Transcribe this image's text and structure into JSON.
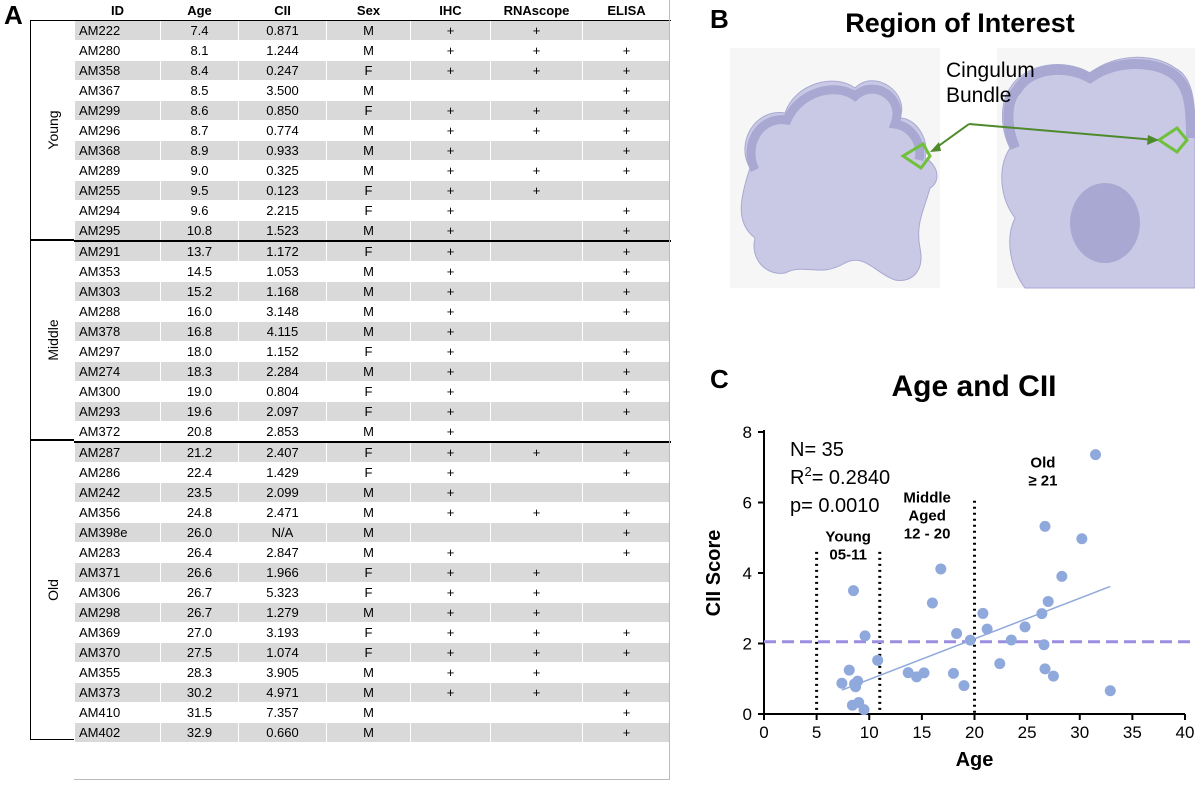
{
  "panel_labels": {
    "a": "A",
    "b": "B",
    "c": "C"
  },
  "table": {
    "headers": [
      "ID",
      "Age",
      "CII",
      "Sex",
      "IHC",
      "RNAscope",
      "ELISA"
    ],
    "groups": [
      {
        "label": "Young",
        "rows": [
          [
            "AM222",
            "7.4",
            "0.871",
            "M",
            "+",
            "+",
            ""
          ],
          [
            "AM280",
            "8.1",
            "1.244",
            "M",
            "+",
            "+",
            "+"
          ],
          [
            "AM358",
            "8.4",
            "0.247",
            "F",
            "+",
            "+",
            "+"
          ],
          [
            "AM367",
            "8.5",
            "3.500",
            "M",
            "",
            "",
            "+"
          ],
          [
            "AM299",
            "8.6",
            "0.850",
            "F",
            "+",
            "+",
            "+"
          ],
          [
            "AM296",
            "8.7",
            "0.774",
            "M",
            "+",
            "+",
            "+"
          ],
          [
            "AM368",
            "8.9",
            "0.933",
            "M",
            "+",
            "",
            "+"
          ],
          [
            "AM289",
            "9.0",
            "0.325",
            "M",
            "+",
            "+",
            "+"
          ],
          [
            "AM255",
            "9.5",
            "0.123",
            "F",
            "+",
            "+",
            ""
          ],
          [
            "AM294",
            "9.6",
            "2.215",
            "F",
            "+",
            "",
            "+"
          ],
          [
            "AM295",
            "10.8",
            "1.523",
            "M",
            "+",
            "",
            "+"
          ]
        ]
      },
      {
        "label": "Middle",
        "rows": [
          [
            "AM291",
            "13.7",
            "1.172",
            "F",
            "+",
            "",
            "+"
          ],
          [
            "AM353",
            "14.5",
            "1.053",
            "M",
            "+",
            "",
            "+"
          ],
          [
            "AM303",
            "15.2",
            "1.168",
            "M",
            "+",
            "",
            "+"
          ],
          [
            "AM288",
            "16.0",
            "3.148",
            "M",
            "+",
            "",
            "+"
          ],
          [
            "AM378",
            "16.8",
            "4.115",
            "M",
            "+",
            "",
            ""
          ],
          [
            "AM297",
            "18.0",
            "1.152",
            "F",
            "+",
            "",
            "+"
          ],
          [
            "AM274",
            "18.3",
            "2.284",
            "M",
            "+",
            "",
            "+"
          ],
          [
            "AM300",
            "19.0",
            "0.804",
            "F",
            "+",
            "",
            "+"
          ],
          [
            "AM293",
            "19.6",
            "2.097",
            "F",
            "+",
            "",
            "+"
          ],
          [
            "AM372",
            "20.8",
            "2.853",
            "M",
            "+",
            "",
            ""
          ]
        ]
      },
      {
        "label": "Old",
        "rows": [
          [
            "AM287",
            "21.2",
            "2.407",
            "F",
            "+",
            "+",
            "+"
          ],
          [
            "AM286",
            "22.4",
            "1.429",
            "F",
            "+",
            "",
            "+"
          ],
          [
            "AM242",
            "23.5",
            "2.099",
            "M",
            "+",
            "",
            ""
          ],
          [
            "AM356",
            "24.8",
            "2.471",
            "M",
            "+",
            "+",
            "+"
          ],
          [
            "AM398e",
            "26.0",
            "N/A",
            "M",
            "",
            "",
            "+"
          ],
          [
            "AM283",
            "26.4",
            "2.847",
            "M",
            "+",
            "",
            "+"
          ],
          [
            "AM371",
            "26.6",
            "1.966",
            "F",
            "+",
            "+",
            ""
          ],
          [
            "AM306",
            "26.7",
            "5.323",
            "F",
            "+",
            "+",
            ""
          ],
          [
            "AM298",
            "26.7",
            "1.279",
            "M",
            "+",
            "+",
            ""
          ],
          [
            "AM369",
            "27.0",
            "3.193",
            "F",
            "+",
            "+",
            "+"
          ],
          [
            "AM370",
            "27.5",
            "1.074",
            "F",
            "+",
            "+",
            "+"
          ],
          [
            "AM355",
            "28.3",
            "3.905",
            "M",
            "+",
            "+",
            ""
          ],
          [
            "AM373",
            "30.2",
            "4.971",
            "M",
            "+",
            "+",
            "+"
          ],
          [
            "AM410",
            "31.5",
            "7.357",
            "M",
            "",
            "",
            "+"
          ],
          [
            "AM402",
            "32.9",
            "0.660",
            "M",
            "",
            "",
            "+"
          ]
        ]
      }
    ]
  },
  "region": {
    "title": "Region of Interest",
    "annotation_line1": "Cingulum",
    "annotation_line2": "Bundle"
  },
  "colors": {
    "row_shade": "#d9d9d9",
    "tissue": "#c9c9e6",
    "tissue_dark": "#a8a8d2",
    "roi": "#6fc13a",
    "arrow": "#4e8a2c",
    "point": "#90a9dc",
    "fit_line": "#90a9dc",
    "threshold": "#9b8ee0"
  },
  "chart_data": {
    "type": "scatter",
    "title": "Age and CII",
    "xlabel": "Age",
    "ylabel": "CII Score",
    "xlim": [
      0,
      40
    ],
    "ylim": [
      0,
      8
    ],
    "xticks": [
      "0",
      "5",
      "10",
      "15",
      "20",
      "25",
      "30",
      "35",
      "40"
    ],
    "yticks": [
      "0",
      "2",
      "4",
      "6",
      "8"
    ],
    "stats": {
      "n": "N= 35",
      "r2_prefix": "R",
      "r2_sup": "2",
      "r2_value": "= 0.2840",
      "p": "p= 0.0010"
    },
    "threshold_y": 2.05,
    "regression": {
      "x": [
        7.4,
        32.9
      ],
      "y": [
        0.68,
        3.62
      ]
    },
    "dividers": [
      5,
      11,
      20
    ],
    "group_labels": [
      {
        "lines": [
          "Young",
          "05-11"
        ],
        "x": 8,
        "y": 4.9
      },
      {
        "lines": [
          "Middle",
          "Aged",
          "12 - 20"
        ],
        "x": 15.5,
        "y": 6.0
      },
      {
        "lines": [
          "Old",
          "≥ 21"
        ],
        "x": 26.5,
        "y": 7.0
      }
    ],
    "points": [
      [
        7.4,
        0.871
      ],
      [
        8.1,
        1.244
      ],
      [
        8.4,
        0.247
      ],
      [
        8.5,
        3.5
      ],
      [
        8.6,
        0.85
      ],
      [
        8.7,
        0.774
      ],
      [
        8.9,
        0.933
      ],
      [
        9.0,
        0.325
      ],
      [
        9.5,
        0.123
      ],
      [
        9.6,
        2.215
      ],
      [
        10.8,
        1.523
      ],
      [
        13.7,
        1.172
      ],
      [
        14.5,
        1.053
      ],
      [
        15.2,
        1.168
      ],
      [
        16.0,
        3.148
      ],
      [
        16.8,
        4.115
      ],
      [
        18.0,
        1.152
      ],
      [
        18.3,
        2.284
      ],
      [
        19.0,
        0.804
      ],
      [
        19.6,
        2.097
      ],
      [
        20.8,
        2.853
      ],
      [
        21.2,
        2.407
      ],
      [
        22.4,
        1.429
      ],
      [
        23.5,
        2.099
      ],
      [
        24.8,
        2.471
      ],
      [
        26.4,
        2.847
      ],
      [
        26.6,
        1.966
      ],
      [
        26.7,
        5.323
      ],
      [
        26.7,
        1.279
      ],
      [
        27.0,
        3.193
      ],
      [
        27.5,
        1.074
      ],
      [
        28.3,
        3.905
      ],
      [
        30.2,
        4.971
      ],
      [
        31.5,
        7.357
      ],
      [
        32.9,
        0.66
      ]
    ]
  }
}
